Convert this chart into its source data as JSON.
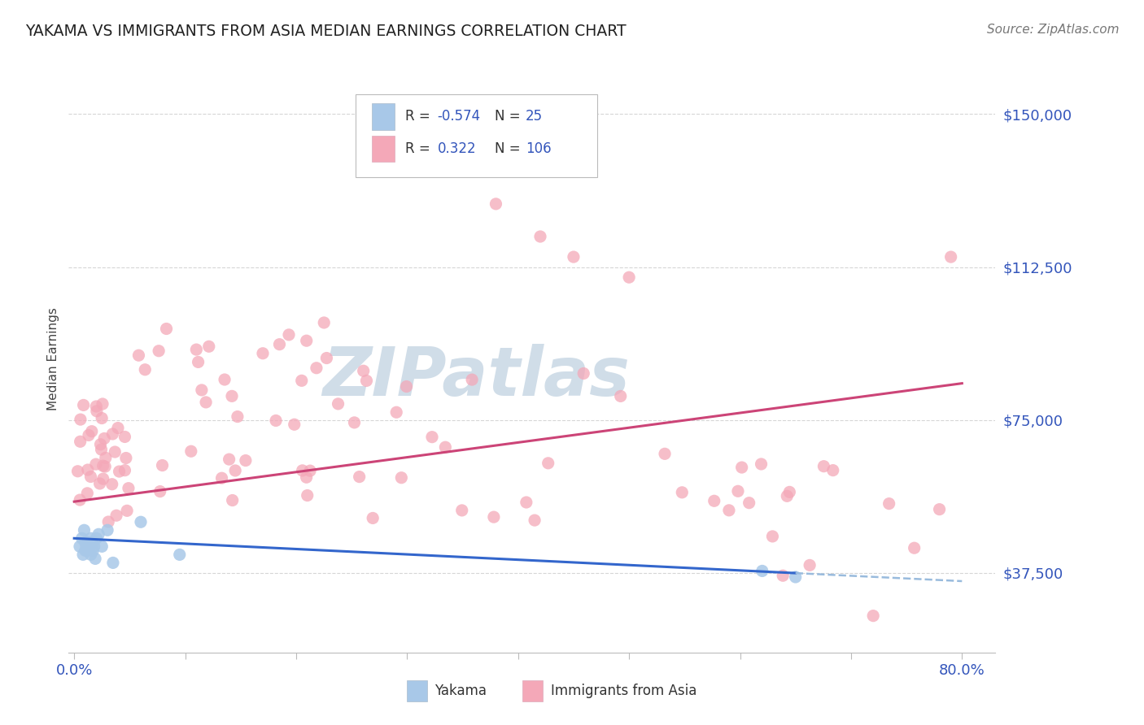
{
  "title": "YAKAMA VS IMMIGRANTS FROM ASIA MEDIAN EARNINGS CORRELATION CHART",
  "source": "Source: ZipAtlas.com",
  "ylabel": "Median Earnings",
  "y_tick_labels": [
    "$37,500",
    "$75,000",
    "$112,500",
    "$150,000"
  ],
  "y_tick_values": [
    37500,
    75000,
    112500,
    150000
  ],
  "ylim": [
    18000,
    162000
  ],
  "xlim": [
    -0.005,
    0.83
  ],
  "legend_blue_R": "-0.574",
  "legend_blue_N": "25",
  "legend_pink_R": "0.322",
  "legend_pink_N": "106",
  "legend_label_blue": "Yakama",
  "legend_label_pink": "Immigrants from Asia",
  "blue_color": "#a8c8e8",
  "pink_color": "#f4a8b8",
  "blue_line_color": "#3366cc",
  "pink_line_color": "#cc4477",
  "blue_dash_color": "#99bbdd",
  "background_color": "#ffffff",
  "title_color": "#222222",
  "axis_label_color": "#3355bb",
  "grid_color": "#cccccc",
  "watermark_color": "#d0dde8",
  "blue_trend_x0": 0.0,
  "blue_trend_y0": 46000,
  "blue_trend_x1": 0.8,
  "blue_trend_y1": 35500,
  "pink_trend_x0": 0.0,
  "pink_trend_y0": 55000,
  "pink_trend_x1": 0.8,
  "pink_trend_y1": 84000
}
